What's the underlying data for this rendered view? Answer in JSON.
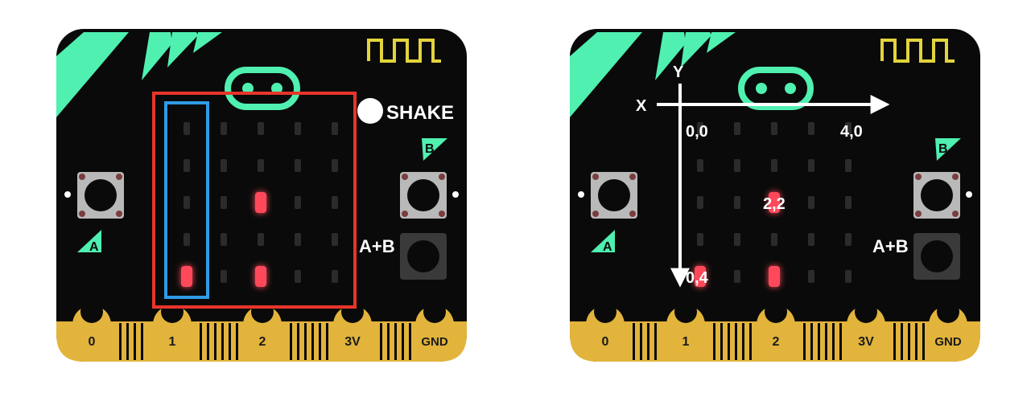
{
  "colors": {
    "board": "#0a0a0a",
    "mint": "#4ff0b0",
    "gold": "#e2b43c",
    "led_on": "#ff4a5a",
    "led_off": "#2b2b2b",
    "red_frame": "#e8352b",
    "blue_frame": "#2f9be6",
    "button_gray": "#b9b9b9",
    "pin_text": "#1a1a1a"
  },
  "board_left": {
    "shake_label": "SHAKE",
    "button_a_label": "A",
    "button_b_label": "B",
    "button_ab_label": "A+B",
    "pins": [
      "0",
      "1",
      "2",
      "3V",
      "GND"
    ],
    "leds_on": [
      [
        2,
        2
      ],
      [
        0,
        4
      ],
      [
        2,
        4
      ]
    ]
  },
  "board_right": {
    "button_a_label": "A",
    "button_b_label": "B",
    "button_ab_label": "A+B",
    "pins": [
      "0",
      "1",
      "2",
      "3V",
      "GND"
    ],
    "leds_on": [
      [
        2,
        2
      ],
      [
        0,
        4
      ],
      [
        2,
        4
      ]
    ],
    "axis_x_label": "X",
    "axis_y_label": "Y",
    "coord_labels": [
      "0,0",
      "4,0",
      "2,2",
      "0,4"
    ]
  }
}
